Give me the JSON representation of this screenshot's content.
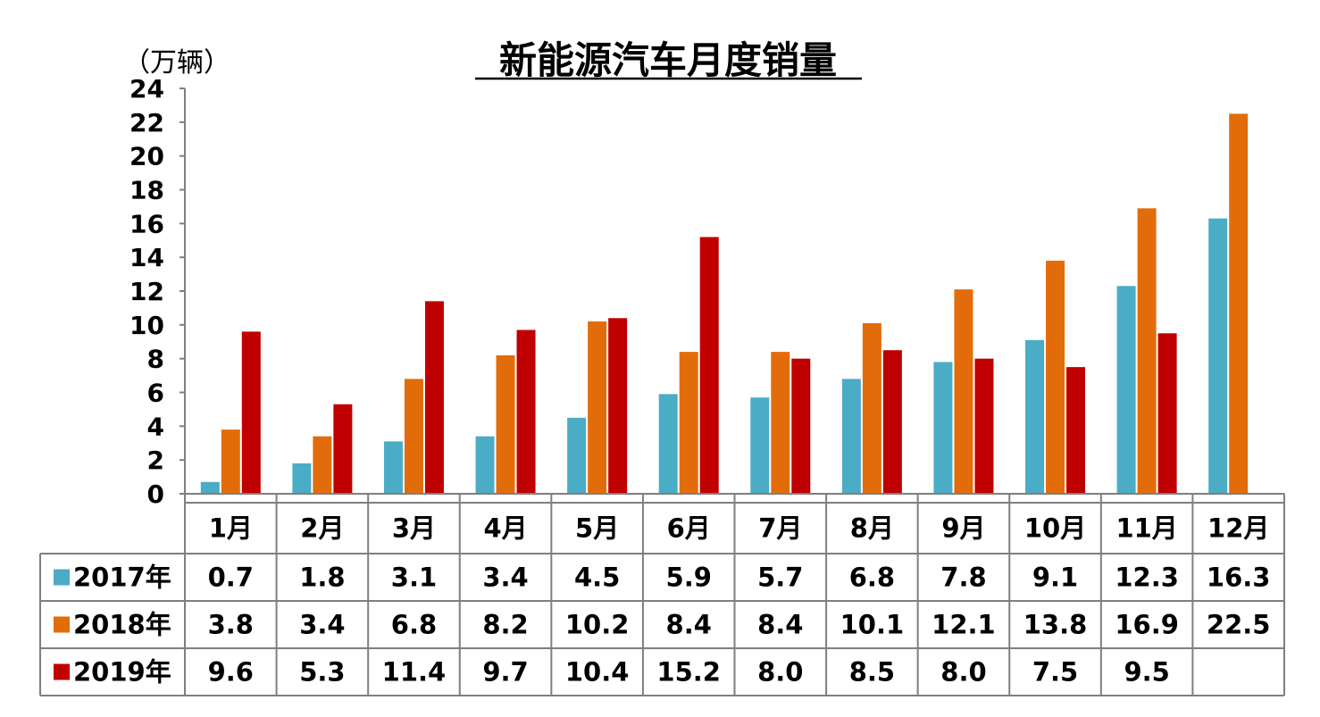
{
  "chart_data": {
    "type": "bar",
    "title": "新能源汽车月度销量",
    "unit_label": "（万辆）",
    "ylim": [
      0,
      24
    ],
    "yticks": [
      "0",
      "2",
      "4",
      "6",
      "8",
      "10",
      "12",
      "14",
      "16",
      "18",
      "20",
      "22",
      "24"
    ],
    "categories": [
      "1月",
      "2月",
      "3月",
      "4月",
      "5月",
      "6月",
      "7月",
      "8月",
      "9月",
      "10月",
      "11月",
      "12月"
    ],
    "legend_placement": "table-left",
    "data_table": true,
    "series": [
      {
        "name": "2017年",
        "color": "#4BACC6",
        "values": [
          0.7,
          1.8,
          3.1,
          3.4,
          4.5,
          5.9,
          5.7,
          6.8,
          7.8,
          9.1,
          12.3,
          16.3
        ],
        "labels": [
          "0.7",
          "1.8",
          "3.1",
          "3.4",
          "4.5",
          "5.9",
          "5.7",
          "6.8",
          "7.8",
          "9.1",
          "12.3",
          "16.3"
        ]
      },
      {
        "name": "2018年",
        "color": "#E36C0A",
        "values": [
          3.8,
          3.4,
          6.8,
          8.2,
          10.2,
          8.4,
          8.4,
          10.1,
          12.1,
          13.8,
          16.9,
          22.5
        ],
        "labels": [
          "3.8",
          "3.4",
          "6.8",
          "8.2",
          "10.2",
          "8.4",
          "8.4",
          "10.1",
          "12.1",
          "13.8",
          "16.9",
          "22.5"
        ]
      },
      {
        "name": "2019年",
        "color": "#C00000",
        "values": [
          9.6,
          5.3,
          11.4,
          9.7,
          10.4,
          15.2,
          8.0,
          8.5,
          8.0,
          7.5,
          9.5,
          null
        ],
        "labels": [
          "9.6",
          "5.3",
          "11.4",
          "9.7",
          "10.4",
          "15.2",
          "8.0",
          "8.5",
          "8.0",
          "7.5",
          "9.5",
          ""
        ]
      }
    ]
  }
}
